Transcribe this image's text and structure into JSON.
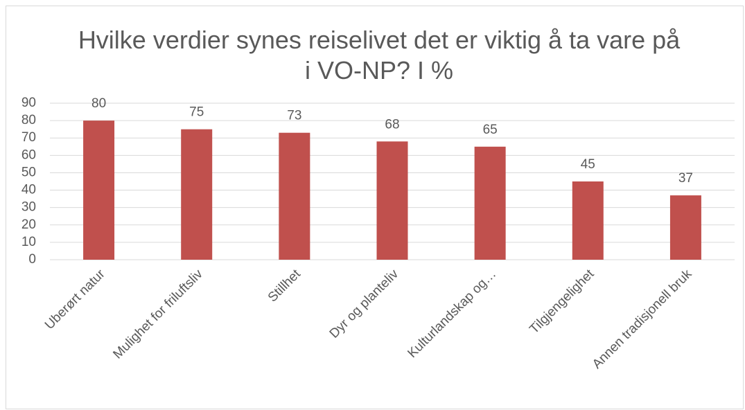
{
  "chart_data": {
    "type": "bar",
    "title": "Hvilke verdier synes reiselivet det er viktig å ta vare på i VO-NP? I %",
    "categories": [
      "Uberørt natur",
      "Mulighet for friluftsliv",
      "Stillhet",
      "Dyr og planteliv",
      "Kulturlandskap og…",
      "Tilgjengelighet",
      "Annen tradisjonell bruk"
    ],
    "values": [
      80,
      75,
      73,
      68,
      65,
      45,
      37
    ],
    "color": "#c0504d",
    "ylim": [
      0,
      90
    ],
    "yticks": [
      0,
      10,
      20,
      30,
      40,
      50,
      60,
      70,
      80,
      90
    ],
    "grid": true
  }
}
